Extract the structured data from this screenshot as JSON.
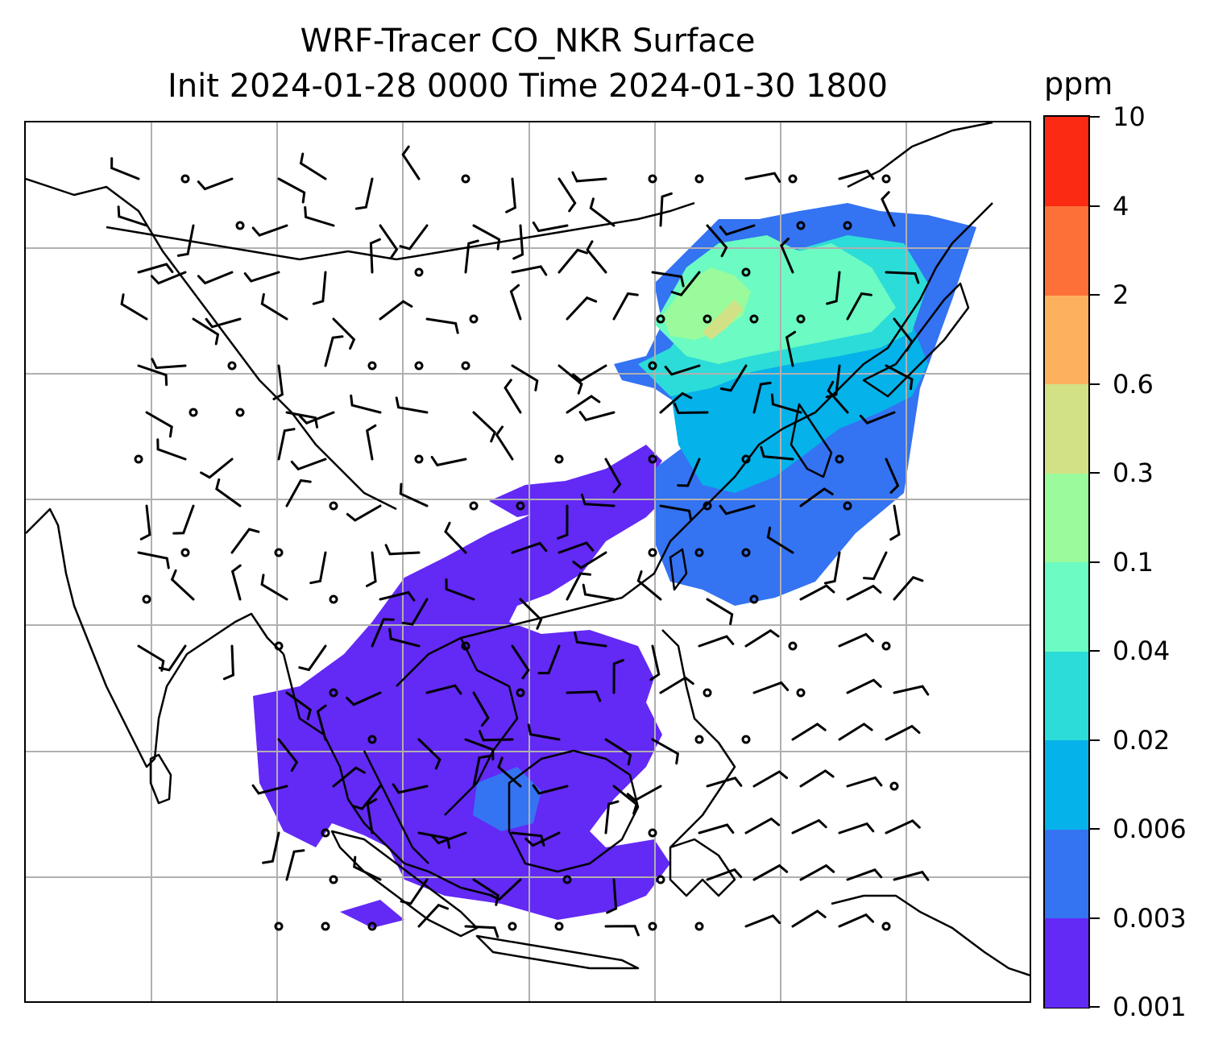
{
  "title": {
    "line1": "WRF-Tracer CO_NKR Surface",
    "line2": "Init 2024-01-28 0000 Time 2024-01-30 1800"
  },
  "colorbar": {
    "unit": "ppm",
    "ticks": [
      "0.001",
      "0.003",
      "0.006",
      "0.02",
      "0.04",
      "0.1",
      "0.3",
      "0.6",
      "2",
      "4",
      "10"
    ],
    "colors": [
      "#6329f5",
      "#3473f2",
      "#05b2ea",
      "#2cdcd8",
      "#6bfbc3",
      "#99fb9c",
      "#d2e185",
      "#fdb15f",
      "#fd7038",
      "#fb2a13"
    ]
  },
  "map": {
    "gridlines": true,
    "gridline_color": "#b0b0b0",
    "coastline_color": "#000000",
    "layers": [
      "CO_NKR concentration filled contours",
      "wind barbs",
      "coastlines and country borders",
      "lat/lon gridlines"
    ]
  }
}
